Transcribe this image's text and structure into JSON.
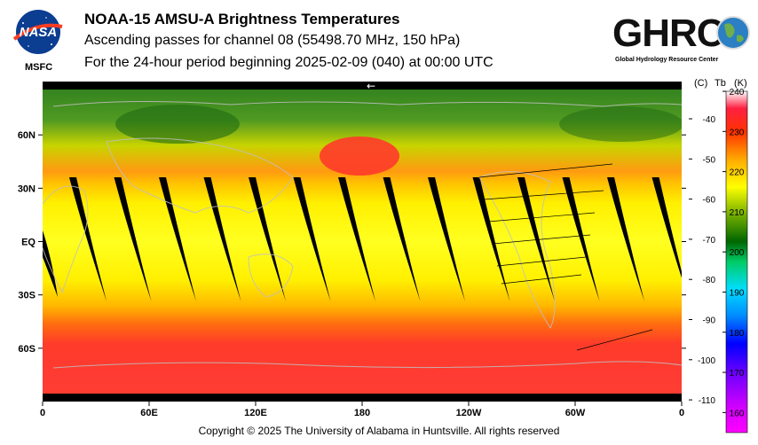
{
  "header": {
    "title": "NOAA-15 AMSU-A Brightness Temperatures",
    "subtitle": "Ascending passes for channel 08 (55498.70 MHz, 150 hPa)",
    "period": "For the 24-hour period beginning 2025-02-09 (040) at 00:00 UTC"
  },
  "logos": {
    "nasa_text": "NASA",
    "nasa_sub": "MSFC",
    "ghrc_text": "GHRC",
    "ghrc_sub": "Global Hydrology Resource Center"
  },
  "footer": {
    "copyright": "Copyright © 2025 The University of Alabama in Huntsville.  All rights reserved"
  },
  "arrow": "←",
  "chart_data": {
    "type": "heatmap",
    "title": "NOAA-15 AMSU-A Brightness Temperatures",
    "x_ticks": [
      "0",
      "60E",
      "120E",
      "180",
      "120W",
      "60W",
      "0"
    ],
    "y_ticks": [
      "60N",
      "30N",
      "EQ",
      "30S",
      "60S"
    ],
    "colorbar": {
      "header_c": "(C)",
      "header_tb": "Tb",
      "header_k": "(K)",
      "celsius_ticks": [
        "-40",
        "-50",
        "-60",
        "-70",
        "-80",
        "-90",
        "-100",
        "-110"
      ],
      "kelvin_ticks": [
        "240",
        "230",
        "220",
        "210",
        "200",
        "190",
        "180",
        "170",
        "160"
      ],
      "range_k": [
        155,
        240
      ],
      "colors": [
        "#ff00ff",
        "#8800ff",
        "#0000ff",
        "#00aaff",
        "#00ffff",
        "#00cc66",
        "#006600",
        "#88bb00",
        "#ffff00",
        "#ffaa00",
        "#ff3300",
        "#ff0033",
        "#ffffff"
      ]
    },
    "zones": [
      {
        "lat_band": "60N-90N",
        "tb_k": 205
      },
      {
        "lat_band": "30N-60N",
        "tb_k": 220
      },
      {
        "lat_band": "30S-30N",
        "tb_k": 218
      },
      {
        "lat_band": "60S-30S",
        "tb_k": 228
      },
      {
        "lat_band": "90S-60S",
        "tb_k": 230
      }
    ]
  }
}
